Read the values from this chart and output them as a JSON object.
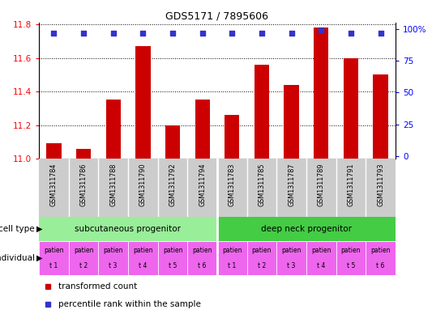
{
  "title": "GDS5171 / 7895606",
  "samples": [
    "GSM1311784",
    "GSM1311786",
    "GSM1311788",
    "GSM1311790",
    "GSM1311792",
    "GSM1311794",
    "GSM1311783",
    "GSM1311785",
    "GSM1311787",
    "GSM1311789",
    "GSM1311791",
    "GSM1311793"
  ],
  "bar_values": [
    11.09,
    11.06,
    11.35,
    11.67,
    11.2,
    11.35,
    11.26,
    11.56,
    11.44,
    11.78,
    11.6,
    11.5
  ],
  "percentile_values": [
    97,
    97,
    97,
    97,
    97,
    97,
    97,
    97,
    97,
    99,
    97,
    97
  ],
  "y_min": 11.0,
  "y_max": 11.8,
  "y_ticks": [
    11.0,
    11.2,
    11.4,
    11.6,
    11.8
  ],
  "right_y_ticks": [
    0,
    25,
    50,
    75,
    100
  ],
  "right_y_labels": [
    "0",
    "25",
    "50",
    "75",
    "100%"
  ],
  "bar_color": "#cc0000",
  "dot_color": "#3333cc",
  "cell_type_groups": [
    {
      "label": "subcutaneous progenitor",
      "start": 0,
      "end": 6,
      "color": "#99ee99"
    },
    {
      "label": "deep neck progenitor",
      "start": 6,
      "end": 12,
      "color": "#44cc44"
    }
  ],
  "individual_labels_top": [
    "patien",
    "patien",
    "patien",
    "patien",
    "patien",
    "patien",
    "patien",
    "patien",
    "patien",
    "patien",
    "patien",
    "patien"
  ],
  "individual_labels_bot": [
    "t 1",
    "t 2",
    "t 3",
    "t 4",
    "t 5",
    "t 6",
    "t 1",
    "t 2",
    "t 3",
    "t 4",
    "t 5",
    "t 6"
  ],
  "individual_color": "#ee66ee",
  "sample_bg_color": "#cccccc",
  "legend_red_label": "transformed count",
  "legend_blue_label": "percentile rank within the sample",
  "cell_type_label": "cell type",
  "individual_label": "individual",
  "fig_width": 5.33,
  "fig_height": 3.93,
  "dpi": 100
}
